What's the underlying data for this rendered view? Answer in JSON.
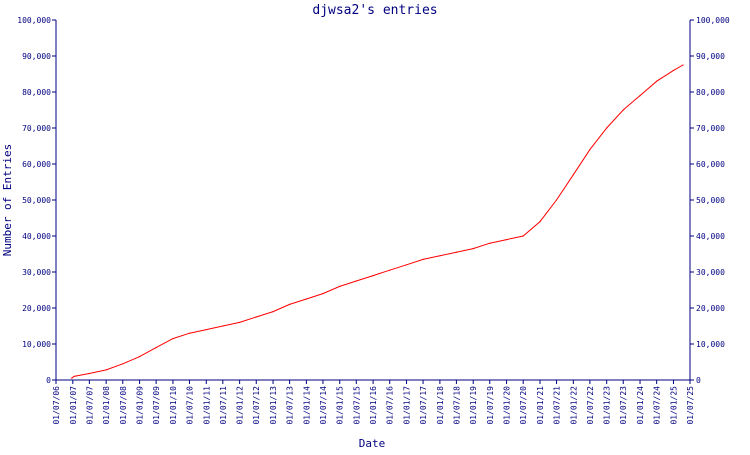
{
  "chart_data": {
    "type": "line",
    "title": "djwsa2's entries",
    "xlabel": "Date",
    "ylabel": "Number of Entries",
    "ylim": [
      0,
      100000
    ],
    "xlim": [
      "2006-07-01",
      "2025-07-01"
    ],
    "y_ticks": [
      0,
      10000,
      20000,
      30000,
      40000,
      50000,
      60000,
      70000,
      80000,
      90000,
      100000
    ],
    "y_tick_labels": [
      "0",
      "10,000",
      "20,000",
      "30,000",
      "40,000",
      "50,000",
      "60,000",
      "70,000",
      "80,000",
      "90,000",
      "100,000"
    ],
    "x_ticks": [
      "2006-07-01",
      "2007-01-01",
      "2007-07-01",
      "2008-01-01",
      "2008-07-01",
      "2009-01-01",
      "2009-07-01",
      "2010-01-01",
      "2010-07-01",
      "2011-01-01",
      "2011-07-01",
      "2012-01-01",
      "2012-07-01",
      "2013-01-01",
      "2013-07-01",
      "2014-01-01",
      "2014-07-01",
      "2015-01-01",
      "2015-07-01",
      "2016-01-01",
      "2016-07-01",
      "2017-01-01",
      "2017-07-01",
      "2018-01-01",
      "2018-07-01",
      "2019-01-01",
      "2019-07-01",
      "2020-01-01",
      "2020-07-01",
      "2021-01-01",
      "2021-07-01",
      "2022-01-01",
      "2022-07-01",
      "2023-01-01",
      "2023-07-01",
      "2024-01-01",
      "2024-07-01",
      "2025-01-01",
      "2025-07-01"
    ],
    "x_tick_labels": [
      "01/07/06",
      "01/01/07",
      "01/07/07",
      "01/01/08",
      "01/07/08",
      "01/01/09",
      "01/07/09",
      "01/01/10",
      "01/07/10",
      "01/01/11",
      "01/07/11",
      "01/01/12",
      "01/07/12",
      "01/01/13",
      "01/07/13",
      "01/01/14",
      "01/07/14",
      "01/01/15",
      "01/07/15",
      "01/01/16",
      "01/07/16",
      "01/01/17",
      "01/07/17",
      "01/01/18",
      "01/07/18",
      "01/01/19",
      "01/07/19",
      "01/01/20",
      "01/07/20",
      "01/01/21",
      "01/07/21",
      "01/01/22",
      "01/07/22",
      "01/01/23",
      "01/07/23",
      "01/01/24",
      "01/07/24",
      "01/01/25",
      "01/07/25"
    ],
    "grid": false,
    "series": [
      {
        "color": "#ff0000",
        "x": [
          "2006-12-20",
          "2007-01-15",
          "2007-07-01",
          "2008-01-01",
          "2008-07-01",
          "2009-01-01",
          "2009-07-01",
          "2010-01-01",
          "2010-07-01",
          "2011-01-01",
          "2011-07-01",
          "2012-01-01",
          "2012-07-01",
          "2013-01-01",
          "2013-07-01",
          "2014-01-01",
          "2014-07-01",
          "2015-01-01",
          "2015-07-01",
          "2016-01-01",
          "2016-07-01",
          "2017-01-01",
          "2017-07-01",
          "2018-01-01",
          "2018-07-01",
          "2019-01-01",
          "2019-07-01",
          "2020-01-01",
          "2020-07-01",
          "2021-01-01",
          "2021-07-01",
          "2022-01-01",
          "2022-07-01",
          "2023-01-01",
          "2023-07-01",
          "2024-01-01",
          "2024-07-01",
          "2025-01-01",
          "2025-04-15"
        ],
        "y": [
          500,
          1000,
          1800,
          2800,
          4500,
          6500,
          9000,
          11500,
          13000,
          14000,
          15000,
          16000,
          17500,
          19000,
          21000,
          22500,
          24000,
          26000,
          27500,
          29000,
          30500,
          32000,
          33500,
          34500,
          35500,
          36500,
          38000,
          39000,
          40000,
          44000,
          50000,
          57000,
          64000,
          70000,
          75000,
          79000,
          83000,
          86000,
          87500
        ]
      }
    ],
    "colors": {
      "axis": "#000080",
      "line": "#ff0000",
      "background": "#ffffff"
    }
  }
}
